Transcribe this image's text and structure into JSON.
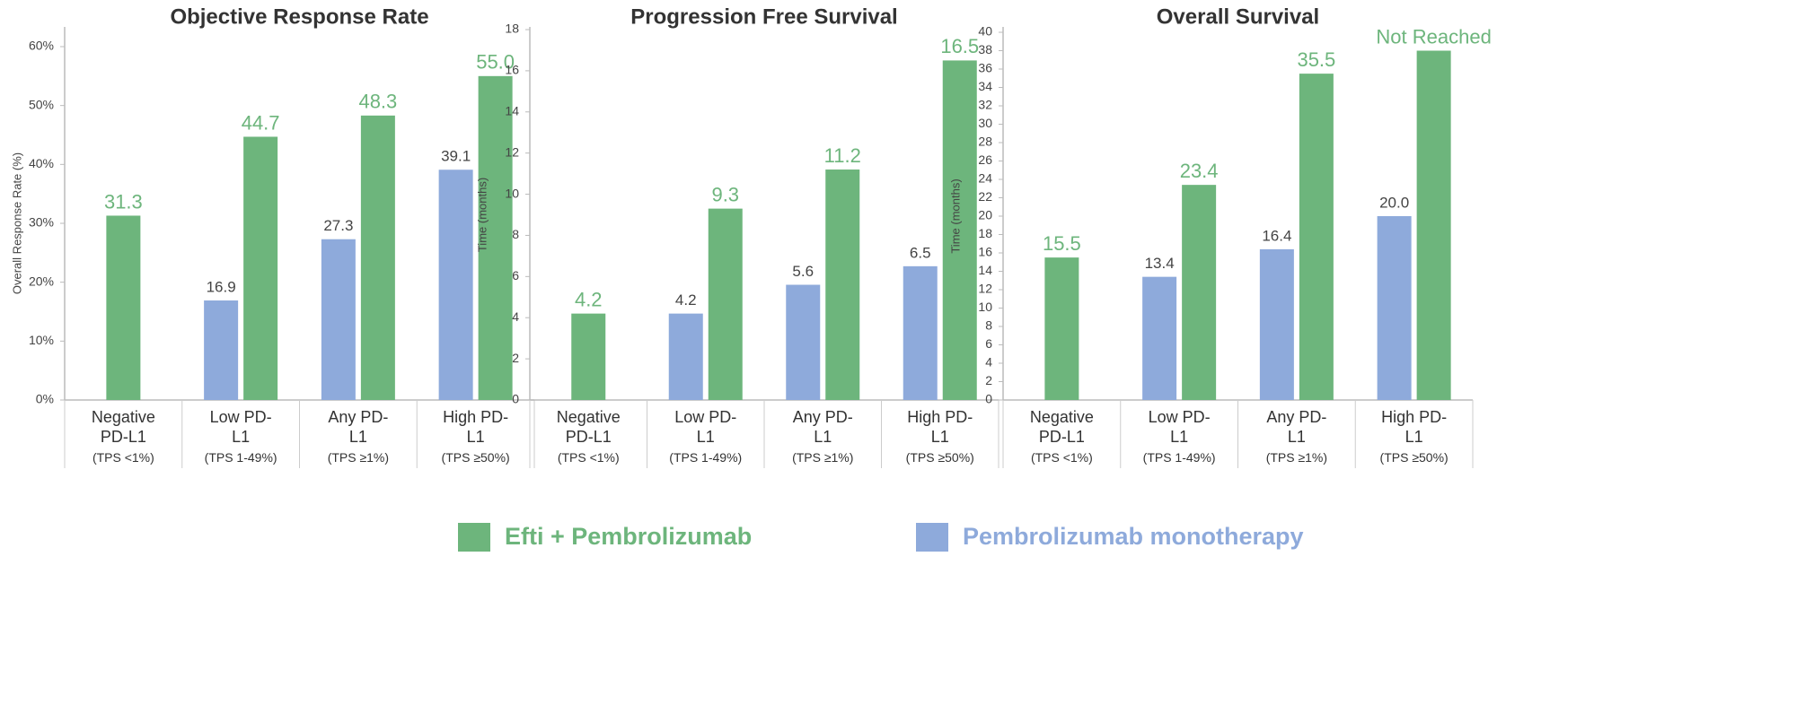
{
  "chart_data": [
    {
      "type": "bar",
      "title": "Objective Response Rate",
      "ylabel": "Overall Response Rate (%)",
      "categories": [
        "Negative PD-L1",
        "Low PD-L1",
        "Any PD-L1",
        "High PD-L1"
      ],
      "category_notes": [
        "(TPS <1%)",
        "(TPS 1-49%)",
        "(TPS ≥1%)",
        "(TPS ≥50%)"
      ],
      "series": [
        {
          "name": "Pembrolizumab monotherapy",
          "color": "#8eaadb",
          "values": [
            null,
            16.9,
            27.3,
            39.1
          ],
          "value_labels": [
            null,
            "16.9",
            "27.3",
            "39.1"
          ]
        },
        {
          "name": "Efti + Pembrolizumab",
          "color": "#6db57c",
          "values": [
            31.3,
            44.7,
            48.3,
            55.0
          ],
          "value_labels": [
            "31.3",
            "44.7",
            "48.3",
            "55.0"
          ]
        }
      ],
      "ylim": [
        0,
        60
      ],
      "yticks": [
        {
          "value": 0,
          "label": "0%"
        },
        {
          "value": 10,
          "label": "10%"
        },
        {
          "value": 20,
          "label": "20%"
        },
        {
          "value": 30,
          "label": "30%"
        },
        {
          "value": 40,
          "label": "40%"
        },
        {
          "value": 50,
          "label": "50%"
        },
        {
          "value": 60,
          "label": "60%"
        }
      ],
      "grid": false
    },
    {
      "type": "bar",
      "title": "Progression Free Survival",
      "ylabel": "Time (months)",
      "categories": [
        "Negative PD-L1",
        "Low PD-L1",
        "Any PD-L1",
        "High PD-L1"
      ],
      "category_notes": [
        "(TPS <1%)",
        "(TPS 1-49%)",
        "(TPS ≥1%)",
        "(TPS ≥50%)"
      ],
      "series": [
        {
          "name": "Pembrolizumab monotherapy",
          "color": "#8eaadb",
          "values": [
            null,
            4.2,
            5.6,
            6.5
          ]
        },
        {
          "name": "Efti + Pembrolizumab",
          "color": "#6db57c",
          "values": [
            4.2,
            9.3,
            11.2,
            16.5
          ]
        }
      ],
      "ylim": [
        0,
        18
      ],
      "yticks": [
        0,
        2,
        4,
        6,
        8,
        10,
        12,
        14,
        16,
        18
      ],
      "grid": false
    },
    {
      "type": "bar",
      "title": "Overall Survival",
      "ylabel": "Time (months)",
      "categories": [
        "Negative PD-L1",
        "Low PD-L1",
        "Any PD-L1",
        "High PD-L1"
      ],
      "category_notes": [
        "(TPS <1%)",
        "(TPS 1-49%)",
        "(TPS ≥1%)",
        "(TPS ≥50%)"
      ],
      "series": [
        {
          "name": "Pembrolizumab monotherapy",
          "color": "#8eaadb",
          "values": [
            null,
            13.4,
            16.4,
            20.0
          ],
          "value_labels": [
            null,
            "13.4",
            "16.4",
            "20.0"
          ]
        },
        {
          "name": "Efti + Pembrolizumab",
          "color": "#6db57c",
          "values": [
            15.5,
            23.4,
            35.5,
            38
          ],
          "value_labels": [
            "15.5",
            "23.4",
            "35.5",
            "Not Reached"
          ]
        }
      ],
      "ylim": [
        0,
        40
      ],
      "yticks": [
        0,
        2,
        4,
        6,
        8,
        10,
        12,
        14,
        16,
        18,
        20,
        22,
        24,
        26,
        28,
        30,
        32,
        34,
        36,
        38,
        40
      ],
      "grid": false
    }
  ]
}
